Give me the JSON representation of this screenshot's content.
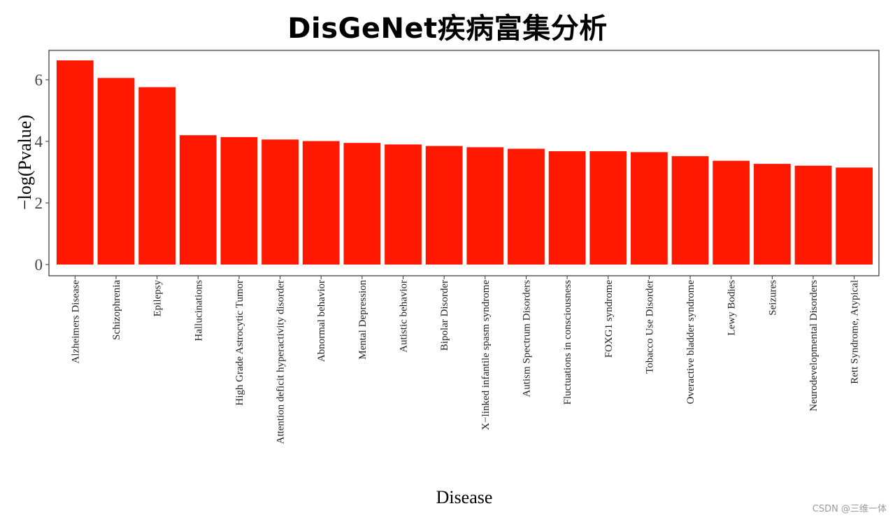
{
  "header": {
    "title": "DisGeNet疾病富集分析"
  },
  "watermark": "CSDN @三维一体",
  "chart_data": {
    "type": "bar",
    "title": "DisGeNet疾病富集分析",
    "xlabel": "Disease",
    "ylabel": "−log(Pvalue)",
    "ylim": [
      0,
      6.9
    ],
    "yticks": [
      0,
      2,
      4,
      6
    ],
    "grid": false,
    "bar_color": "#ff1800",
    "categories": [
      "Alzheimers Disease",
      "Schizophrenia",
      "Epilepsy",
      "Hallucinations",
      "High Grade Astrocytic Tumor",
      "Attention deficit hyperactivity disorder",
      "Abnormal behavior",
      "Mental Depression",
      "Autistic behavior",
      "Bipolar Disorder",
      "X−linked infantile spasm syndrome",
      "Autism Spectrum Disorders",
      "Fluctuations in consciousness",
      "FOXG1 syndrome",
      "Tobacco Use Disorder",
      "Overactive bladder syndrome",
      "Lewy Bodies",
      "Seizures",
      "Neurodevelopmental Disorders",
      "Rett Syndrome, Atypical"
    ],
    "values": [
      6.63,
      6.06,
      5.76,
      4.2,
      4.14,
      4.06,
      4.01,
      3.95,
      3.9,
      3.85,
      3.81,
      3.76,
      3.68,
      3.68,
      3.65,
      3.52,
      3.37,
      3.27,
      3.21,
      3.15
    ]
  }
}
